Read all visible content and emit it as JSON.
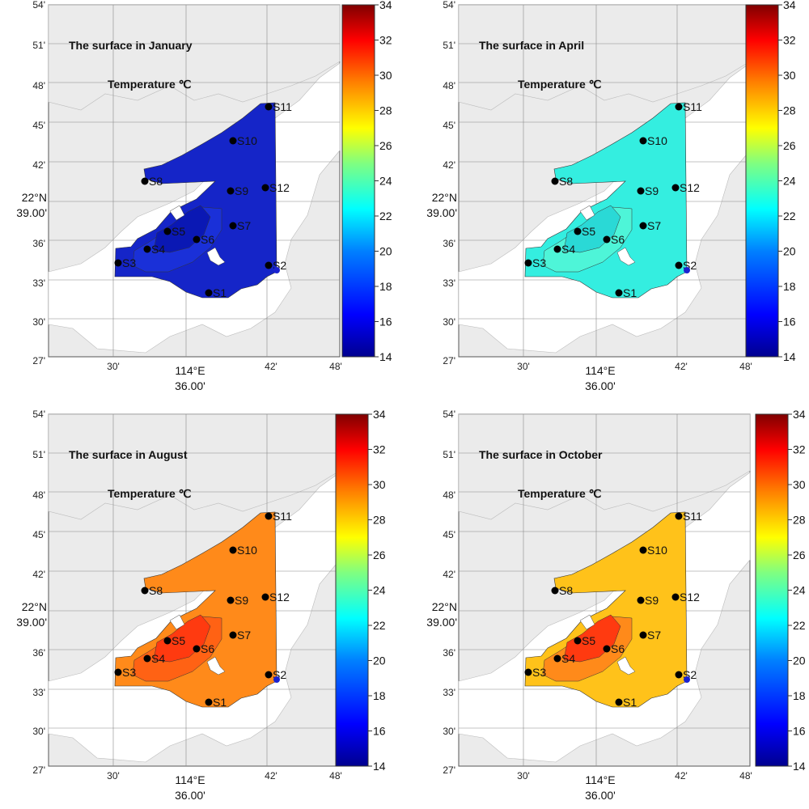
{
  "colorbar": {
    "ticks": [
      "14",
      "16",
      "18",
      "20",
      "22",
      "24",
      "26",
      "28",
      "30",
      "32",
      "34"
    ],
    "stops": [
      "#00008f",
      "#0000ff",
      "#0080ff",
      "#00ffff",
      "#80ff80",
      "#ffff00",
      "#ff8000",
      "#ff0000",
      "#800000"
    ]
  },
  "axes": {
    "y_ticks": [
      "54'",
      "51'",
      "48'",
      "45'",
      "42'",
      "39.00'",
      "36'",
      "33'",
      "30'",
      "27'"
    ],
    "y_label_main": "22°N",
    "y_label_sub": "39.00'",
    "x_ticks": [
      "30'",
      "42'",
      "48'"
    ],
    "x_label_main": "114°E",
    "x_label_sub": "36.00'"
  },
  "stations": [
    "S1",
    "S2",
    "S3",
    "S4",
    "S5",
    "S6",
    "S7",
    "S8",
    "S9",
    "S10",
    "S11",
    "S12"
  ],
  "panels": [
    {
      "title": "The surface in January",
      "subtitle": "Temperature ℃",
      "fill": "#1525c8",
      "hot": "#0a18b4",
      "hot2": "#1a30d8"
    },
    {
      "title": "The surface in April",
      "subtitle": "Temperature ℃",
      "fill": "#34eee0",
      "hot": "#2ad9d6",
      "hot2": "#4ef5d8"
    },
    {
      "title": "The surface in August",
      "subtitle": "Temperature ℃",
      "fill": "#ff8a1a",
      "hot": "#ff3a10",
      "hot2": "#ff6214"
    },
    {
      "title": "The surface in October",
      "subtitle": "Temperature ℃",
      "fill": "#ffc21a",
      "hot": "#ff3a10",
      "hot2": "#ff8a1a"
    }
  ]
}
